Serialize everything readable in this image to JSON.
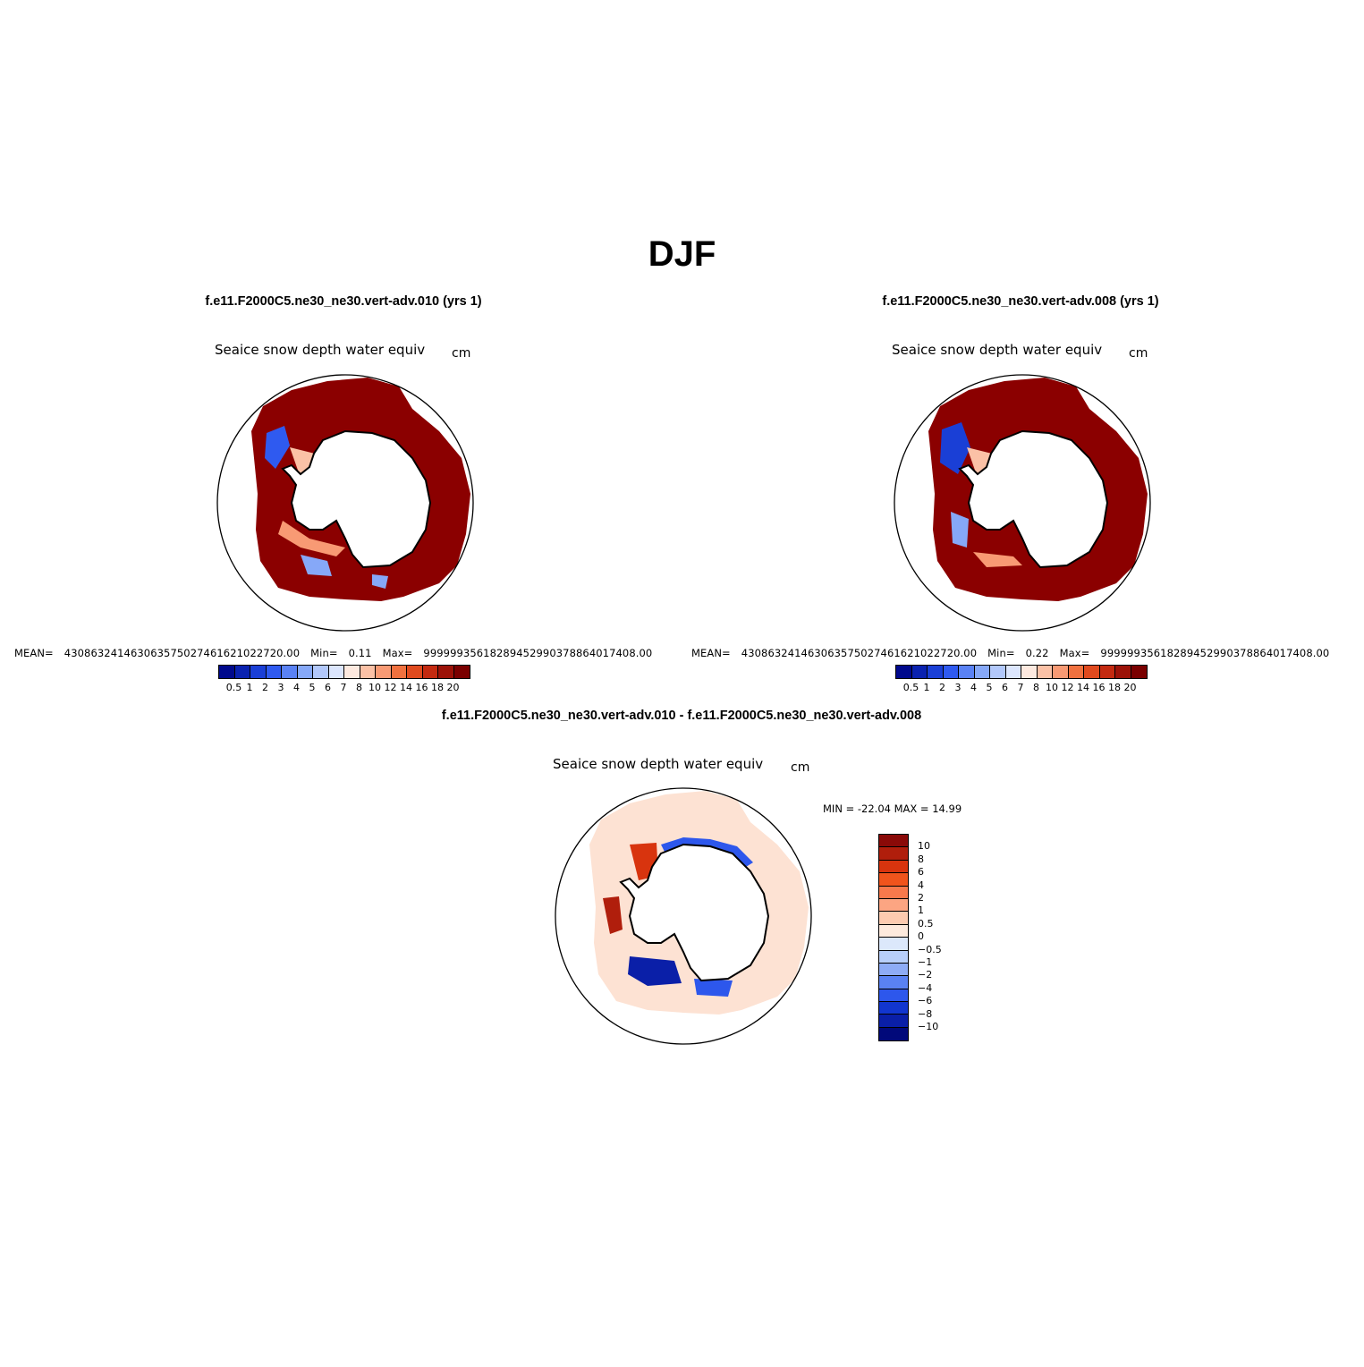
{
  "figure": {
    "title": "DJF"
  },
  "panels": [
    {
      "case_title": "f.e11.F2000C5.ne30_ne30.vert-adv.010 (yrs 1)",
      "variable": "Seaice snow depth water equiv",
      "units": "cm",
      "mean_label": "MEAN=",
      "mean_value": "430863241463063575027461621022720.00",
      "min_label": "Min=",
      "min_value": "0.11",
      "max_label": "Max=",
      "max_value": "99999935618289452990378864017408.00"
    },
    {
      "case_title": "f.e11.F2000C5.ne30_ne30.vert-adv.008 (yrs 1)",
      "variable": "Seaice snow depth water equiv",
      "units": "cm",
      "mean_label": "MEAN=",
      "mean_value": "430863241463063575027461621022720.00",
      "min_label": "Min=",
      "min_value": "0.22",
      "max_label": "Max=",
      "max_value": "99999935618289452990378864017408.00"
    }
  ],
  "diff_panel": {
    "case_title": "f.e11.F2000C5.ne30_ne30.vert-adv.010 - f.e11.F2000C5.ne30_ne30.vert-adv.008",
    "variable": "Seaice snow depth water equiv",
    "units": "cm",
    "min_label": "MIN =",
    "min_value": "-22.04",
    "max_label": "MAX =",
    "max_value": "14.99"
  },
  "colorbar_main": {
    "labels": [
      "0.5",
      "1",
      "2",
      "3",
      "4",
      "5",
      "6",
      "7",
      "8",
      "10",
      "12",
      "14",
      "16",
      "18",
      "20"
    ],
    "colors": [
      "#00098c",
      "#0a22b0",
      "#1a3fd6",
      "#2f5af0",
      "#5a82f5",
      "#86a8f8",
      "#b2c8fb",
      "#dce6fd",
      "#fde9df",
      "#fbc1a6",
      "#f89a74",
      "#f0713f",
      "#e04a1e",
      "#c42a10",
      "#9c1208",
      "#7a0000"
    ]
  },
  "colorbar_diff": {
    "labels": [
      "10",
      "8",
      "6",
      "4",
      "2",
      "1",
      "0.5",
      "0",
      "−0.5",
      "−1",
      "−2",
      "−4",
      "−6",
      "−8",
      "−10"
    ],
    "colors": [
      "#8a0a08",
      "#b01e0c",
      "#d8340e",
      "#f0541c",
      "#f7794c",
      "#fca582",
      "#fdcbb0",
      "#fdeadd",
      "#dce8fb",
      "#b8cffa",
      "#8eacf6",
      "#5a82f3",
      "#2d57ec",
      "#1236cf",
      "#0a1fa8",
      "#01097a"
    ]
  },
  "map_colors": {
    "main_fill": "#8b0000",
    "diff_fill": "#fde2d3",
    "land": "#ffffff",
    "outline": "#000000"
  }
}
